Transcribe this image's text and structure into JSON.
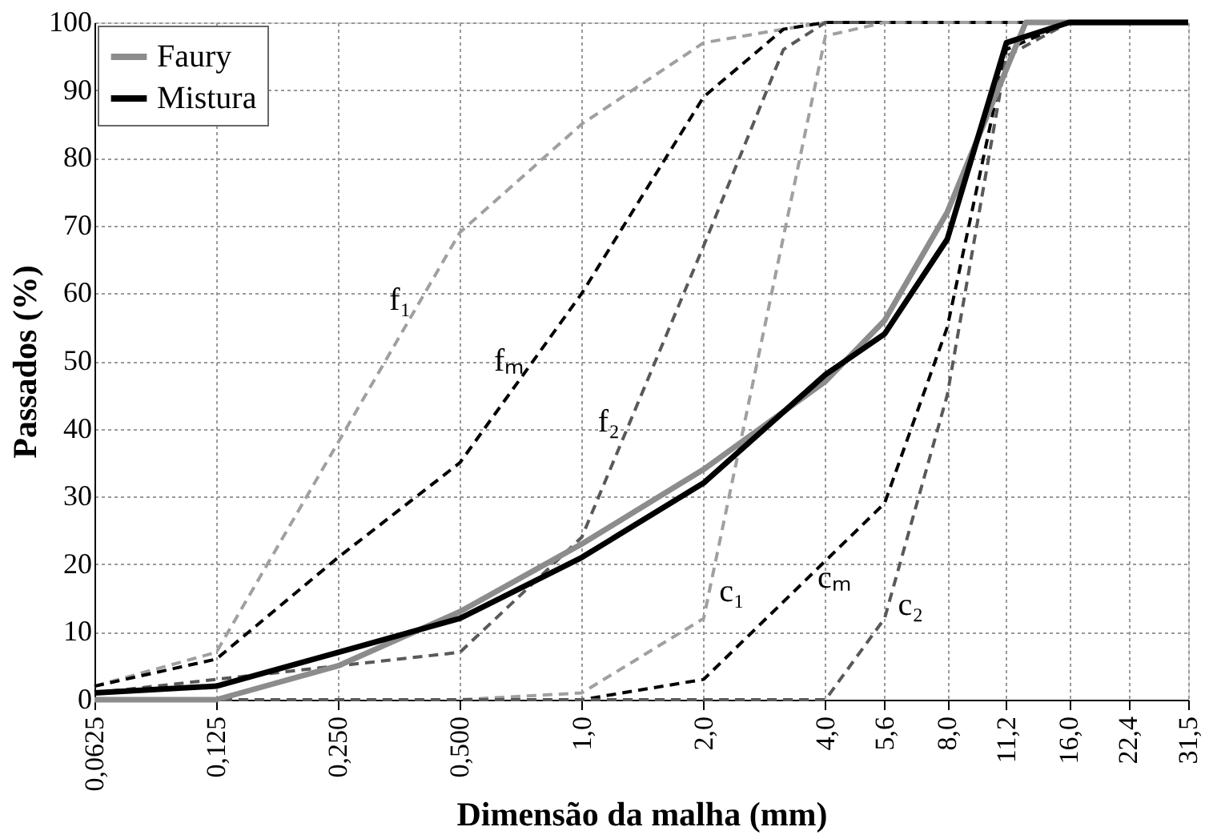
{
  "chart_data": {
    "type": "line",
    "xlabel": "Dimensão da malha (mm)",
    "ylabel": "Passados (%)",
    "log": "x",
    "xlim": [
      0.0625,
      31.5
    ],
    "ylim": [
      0,
      100
    ],
    "xticks": [
      {
        "value": 0.0625,
        "label": "0,0625"
      },
      {
        "value": 0.125,
        "label": "0,125"
      },
      {
        "value": 0.25,
        "label": "0,250"
      },
      {
        "value": 0.5,
        "label": "0,500"
      },
      {
        "value": 1,
        "label": "1,0"
      },
      {
        "value": 2,
        "label": "2,0"
      },
      {
        "value": 4,
        "label": "4,0"
      },
      {
        "value": 5.6,
        "label": "5,6"
      },
      {
        "value": 8,
        "label": "8,0"
      },
      {
        "value": 11.2,
        "label": "11,2"
      },
      {
        "value": 16,
        "label": "16,0"
      },
      {
        "value": 22.4,
        "label": "22,4"
      },
      {
        "value": 31.5,
        "label": "31,5"
      }
    ],
    "yticks": [
      0,
      10,
      20,
      30,
      40,
      50,
      60,
      70,
      80,
      90,
      100
    ],
    "grid": true,
    "legend": "top left",
    "marker": "none",
    "series": [
      {
        "color": "#a0a0a0",
        "line_style": "dashed",
        "x": [
          0.0625,
          0.125,
          0.25,
          0.5,
          1,
          2,
          3.15,
          4,
          31.5
        ],
        "values": [
          2,
          7,
          38,
          69,
          85,
          97,
          99,
          100,
          100
        ]
      },
      {
        "color": "#000000",
        "line_style": "dashed",
        "x": [
          0.0625,
          0.125,
          0.25,
          0.5,
          1,
          2,
          3.15,
          4,
          31.5
        ],
        "values": [
          2,
          6,
          21,
          35,
          60,
          89,
          99,
          100,
          100
        ]
      },
      {
        "color": "#595959",
        "line_style": "dashed",
        "x": [
          0.0625,
          0.125,
          0.25,
          0.5,
          1,
          2,
          3.15,
          4,
          31.5
        ],
        "values": [
          1,
          3,
          5,
          7,
          24,
          67,
          96,
          100,
          100
        ]
      },
      {
        "color": "#a0a0a0",
        "line_style": "dashed",
        "x": [
          0.0625,
          0.125,
          0.25,
          0.5,
          1,
          2,
          4,
          5.6,
          31.5
        ],
        "values": [
          0,
          0,
          0,
          0,
          1,
          12,
          98,
          100,
          100
        ]
      },
      {
        "color": "#000000",
        "line_style": "dashed",
        "x": [
          0.0625,
          0.125,
          0.25,
          0.5,
          1,
          2,
          5.6,
          8,
          11.2,
          16,
          31.5
        ],
        "values": [
          0,
          0,
          0,
          0,
          0,
          3,
          29,
          55,
          96,
          100,
          100
        ]
      },
      {
        "color": "#595959",
        "line_style": "dashed",
        "x": [
          0.0625,
          0.125,
          0.25,
          0.5,
          1,
          2,
          4,
          5.6,
          8,
          11.2,
          16,
          31.5
        ],
        "values": [
          0,
          0,
          0,
          0,
          0,
          0,
          0,
          12,
          45,
          95,
          100,
          100
        ]
      },
      {
        "name": "Faury",
        "color": "#8c8c8c",
        "line_style": "solid",
        "x": [
          0.0625,
          0.125,
          0.25,
          0.5,
          1,
          2,
          4,
          5.6,
          8,
          12.5,
          31.5
        ],
        "values": [
          0,
          0,
          5,
          13,
          23,
          34,
          47,
          56,
          72,
          100,
          100
        ]
      },
      {
        "name": "Mistura",
        "color": "#000000",
        "line_style": "solid",
        "x": [
          0.0625,
          0.125,
          0.25,
          0.5,
          1,
          2,
          4,
          5.6,
          8,
          11.2,
          16,
          31.5
        ],
        "values": [
          1,
          2,
          7,
          12,
          21,
          32,
          48,
          54,
          68,
          97,
          100,
          100
        ]
      }
    ],
    "annotations": [
      {
        "text": "f₁",
        "x": 0.4,
        "y": 59
      },
      {
        "text": "fₘ",
        "x": 0.76,
        "y": 50
      },
      {
        "text": "f₂",
        "x": 1.31,
        "y": 41
      },
      {
        "text": "c₁",
        "x": 2.07,
        "y": 16
      },
      {
        "text": "cₘ",
        "x": 3.62,
        "y": 18
      },
      {
        "text": "c₂",
        "x": 5.72,
        "y": 14
      }
    ]
  }
}
